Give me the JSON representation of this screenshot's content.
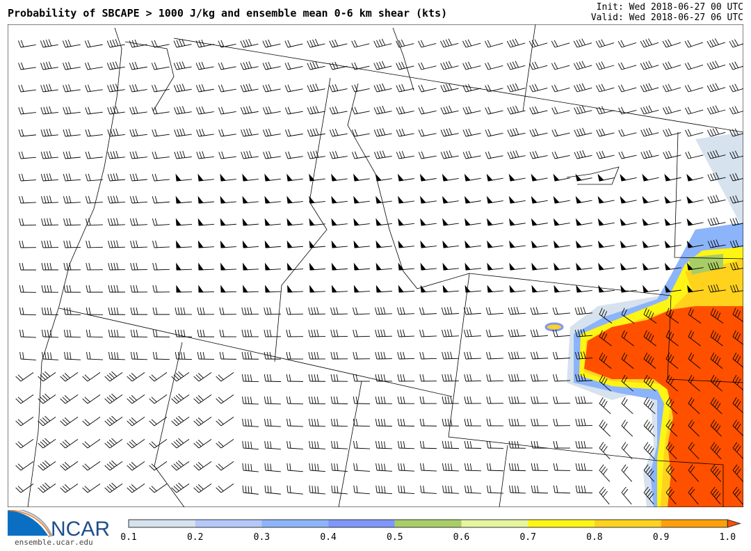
{
  "header": {
    "title": "Probability of SBCAPE > 1000 J/kg and ensemble mean 0-6 km shear (kts)",
    "init": "Init: Wed 2018-06-27 00 UTC",
    "valid": "Valid: Wed 2018-06-27 06 UTC"
  },
  "logo": {
    "text": "NCAR",
    "url": "ensemble.ucar.edu"
  },
  "colorbar": {
    "ticks": [
      "0.1",
      "0.2",
      "0.3",
      "0.4",
      "0.5",
      "0.6",
      "0.7",
      "0.8",
      "0.9",
      "1.0"
    ],
    "colors": [
      "#d6e2ed",
      "#b4c8fa",
      "#8cb4fa",
      "#7f96fa",
      "#a9cd66",
      "#e6f5a0",
      "#fff514",
      "#ffd21e",
      "#ffa00a"
    ],
    "extend_color": "#ff5000"
  }
}
